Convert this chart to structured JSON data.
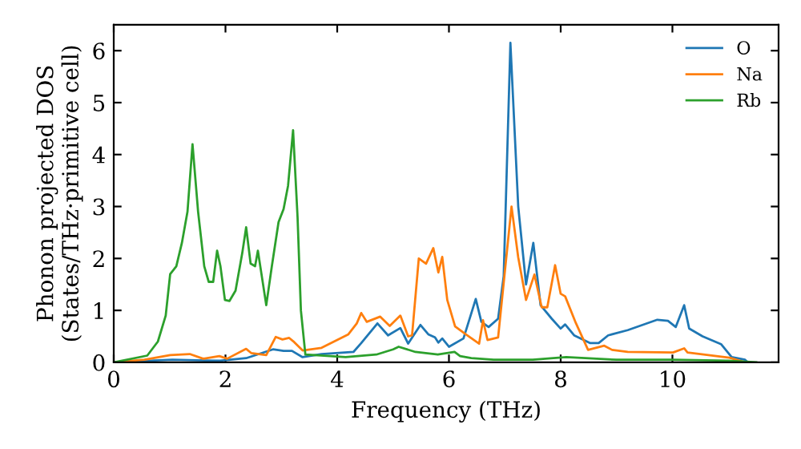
{
  "chart_data": {
    "type": "line",
    "xlabel": "Frequency (THz)",
    "ylabel": "Phonon projected DOS\n(States/THz·primitive cell)",
    "xlim": [
      0,
      11.9
    ],
    "ylim": [
      0,
      6.5
    ],
    "xticks": [
      0,
      2,
      4,
      6,
      8,
      10
    ],
    "yticks": [
      0,
      1,
      2,
      3,
      4,
      5,
      6
    ],
    "legend": "top right",
    "grid": false,
    "marker": "none",
    "line_style": "solid",
    "series": [
      {
        "name": "O",
        "color": "#1f77b4",
        "x": [
          0,
          1.05,
          1.9,
          2.37,
          2.85,
          3.04,
          3.19,
          3.38,
          3.72,
          4.29,
          4.43,
          4.72,
          4.91,
          5.13,
          5.27,
          5.49,
          5.63,
          5.75,
          5.81,
          5.88,
          6.0,
          6.26,
          6.48,
          6.58,
          6.71,
          6.88,
          6.98,
          7.1,
          7.24,
          7.38,
          7.51,
          7.64,
          7.84,
          8.0,
          8.08,
          8.24,
          8.53,
          8.68,
          8.85,
          9.2,
          9.73,
          9.92,
          10.06,
          10.21,
          10.3,
          10.54,
          10.87,
          11.06,
          11.3,
          11.35
        ],
        "values": [
          0,
          0.05,
          0.03,
          0.08,
          0.25,
          0.22,
          0.22,
          0.1,
          0.16,
          0.2,
          0.37,
          0.75,
          0.52,
          0.66,
          0.36,
          0.72,
          0.54,
          0.48,
          0.38,
          0.46,
          0.3,
          0.46,
          1.22,
          0.78,
          0.68,
          0.84,
          1.66,
          6.15,
          3.0,
          1.5,
          2.3,
          1.1,
          0.84,
          0.65,
          0.73,
          0.52,
          0.37,
          0.37,
          0.52,
          0.62,
          0.82,
          0.8,
          0.68,
          1.1,
          0.65,
          0.5,
          0.35,
          0.1,
          0.05,
          0
        ]
      },
      {
        "name": "Na",
        "color": "#ff7f0e",
        "x": [
          0,
          0.55,
          1.01,
          1.36,
          1.6,
          1.89,
          2.03,
          2.37,
          2.46,
          2.73,
          2.9,
          3.02,
          3.14,
          3.23,
          3.38,
          3.72,
          4.2,
          4.35,
          4.43,
          4.53,
          4.77,
          4.94,
          5.13,
          5.27,
          5.34,
          5.46,
          5.59,
          5.72,
          5.81,
          5.88,
          5.97,
          6.11,
          6.3,
          6.54,
          6.61,
          6.69,
          6.88,
          7.12,
          7.24,
          7.38,
          7.53,
          7.66,
          7.76,
          7.9,
          8.0,
          8.08,
          8.27,
          8.49,
          8.78,
          8.92,
          9.2,
          10.01,
          10.21,
          10.27,
          11.02,
          11.3
        ],
        "values": [
          0,
          0.05,
          0.14,
          0.16,
          0.07,
          0.12,
          0.07,
          0.26,
          0.18,
          0.14,
          0.49,
          0.44,
          0.47,
          0.39,
          0.23,
          0.28,
          0.54,
          0.75,
          0.95,
          0.78,
          0.88,
          0.7,
          0.9,
          0.5,
          0.52,
          2.0,
          1.9,
          2.2,
          1.73,
          2.03,
          1.2,
          0.69,
          0.54,
          0.36,
          0.81,
          0.43,
          0.48,
          3.0,
          2.02,
          1.2,
          1.69,
          1.06,
          1.06,
          1.87,
          1.32,
          1.27,
          0.76,
          0.24,
          0.32,
          0.24,
          0.2,
          0.19,
          0.27,
          0.19,
          0.09,
          0
        ]
      },
      {
        "name": "Rb",
        "color": "#2ca02c",
        "x": [
          0,
          0.6,
          0.79,
          0.93,
          1.01,
          1.12,
          1.22,
          1.32,
          1.41,
          1.51,
          1.62,
          1.7,
          1.78,
          1.85,
          1.91,
          1.99,
          2.07,
          2.18,
          2.3,
          2.37,
          2.45,
          2.53,
          2.58,
          2.73,
          2.83,
          2.95,
          3.04,
          3.12,
          3.21,
          3.29,
          3.35,
          3.43,
          4.15,
          4.7,
          5.0,
          5.1,
          5.4,
          5.8,
          6.1,
          6.2,
          6.4,
          6.8,
          7.5,
          8.1,
          9.0,
          10.0,
          11.0,
          11.5
        ],
        "values": [
          0,
          0.13,
          0.4,
          0.9,
          1.7,
          1.85,
          2.3,
          2.9,
          4.2,
          2.9,
          1.85,
          1.55,
          1.55,
          2.15,
          1.85,
          1.2,
          1.18,
          1.38,
          2.1,
          2.6,
          1.9,
          1.85,
          2.15,
          1.1,
          1.85,
          2.7,
          2.95,
          3.4,
          4.47,
          2.8,
          1.0,
          0.15,
          0.1,
          0.15,
          0.25,
          0.3,
          0.2,
          0.15,
          0.2,
          0.12,
          0.08,
          0.05,
          0.05,
          0.1,
          0.05,
          0.05,
          0.03,
          0
        ]
      }
    ]
  }
}
